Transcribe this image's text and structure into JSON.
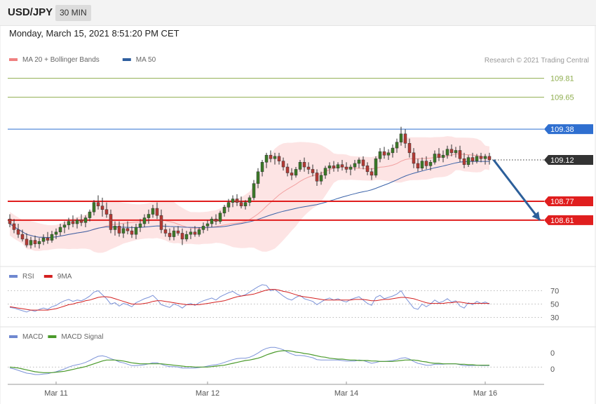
{
  "header": {
    "pair": "USD/JPY",
    "timeframe": "30 MIN"
  },
  "datetime": "Monday, March 15, 2021 8:51:20 PM CET",
  "copyright": "Research © 2021 Trading Central",
  "legend_main": [
    {
      "label": "MA 20 + Bollinger Bands",
      "color": "#f08080"
    },
    {
      "label": "MA 50",
      "color": "#2f5f9f"
    }
  ],
  "legend_rsi": [
    {
      "label": "RSI",
      "color": "#6f88d0"
    },
    {
      "label": "9MA",
      "color": "#d42020"
    }
  ],
  "legend_macd": [
    {
      "label": "MACD",
      "color": "#6f88d0"
    },
    {
      "label": "MACD Signal",
      "color": "#4a9a2a"
    }
  ],
  "chart_data": {
    "type": "candlestick",
    "price_range": [
      108.23,
      109.95
    ],
    "levels": [
      {
        "label": "109.81",
        "value": 109.81,
        "kind": "target",
        "color": "#8fae4f"
      },
      {
        "label": "109.65",
        "value": 109.65,
        "kind": "target",
        "color": "#8fae4f"
      },
      {
        "label": "109.38",
        "value": 109.38,
        "kind": "pivot",
        "color": "#2f6fd0"
      },
      {
        "label": "109.12",
        "value": 109.12,
        "kind": "last",
        "color": "#333333"
      },
      {
        "label": "108.77",
        "value": 108.77,
        "kind": "support",
        "color": "#e01e1e"
      },
      {
        "label": "108.61",
        "value": 108.61,
        "kind": "support",
        "color": "#e01e1e"
      }
    ],
    "x_ticks": [
      {
        "label": "Mar 11",
        "index": 11
      },
      {
        "label": "Mar 12",
        "index": 47
      },
      {
        "label": "Mar 14",
        "index": 80
      },
      {
        "label": "Mar 16",
        "index": 113
      }
    ],
    "arrow": {
      "from_index": 115,
      "from_value": 109.12,
      "to_index": 126,
      "to_value": 108.61
    },
    "candles": [
      [
        108.62,
        108.66,
        108.55,
        108.58
      ],
      [
        108.58,
        108.62,
        108.5,
        108.53
      ],
      [
        108.53,
        108.58,
        108.46,
        108.49
      ],
      [
        108.49,
        108.53,
        108.43,
        108.45
      ],
      [
        108.45,
        108.5,
        108.38,
        108.4
      ],
      [
        108.4,
        108.47,
        108.37,
        108.44
      ],
      [
        108.44,
        108.48,
        108.38,
        108.41
      ],
      [
        108.41,
        108.46,
        108.37,
        108.43
      ],
      [
        108.43,
        108.49,
        108.4,
        108.46
      ],
      [
        108.46,
        108.51,
        108.41,
        108.44
      ],
      [
        108.44,
        108.52,
        108.42,
        108.49
      ],
      [
        108.49,
        108.54,
        108.45,
        108.51
      ],
      [
        108.51,
        108.58,
        108.48,
        108.55
      ],
      [
        108.55,
        108.6,
        108.5,
        108.57
      ],
      [
        108.57,
        108.63,
        108.53,
        108.6
      ],
      [
        108.6,
        108.65,
        108.55,
        108.58
      ],
      [
        108.58,
        108.63,
        108.54,
        108.61
      ],
      [
        108.61,
        108.66,
        108.56,
        108.59
      ],
      [
        108.59,
        108.65,
        108.55,
        108.63
      ],
      [
        108.63,
        108.7,
        108.6,
        108.68
      ],
      [
        108.68,
        108.78,
        108.65,
        108.76
      ],
      [
        108.76,
        108.82,
        108.7,
        108.73
      ],
      [
        108.73,
        108.8,
        108.64,
        108.7
      ],
      [
        108.7,
        108.76,
        108.63,
        108.66
      ],
      [
        108.66,
        108.7,
        108.5,
        108.53
      ],
      [
        108.53,
        108.6,
        108.48,
        108.56
      ],
      [
        108.56,
        108.6,
        108.47,
        108.5
      ],
      [
        108.5,
        108.58,
        108.46,
        108.54
      ],
      [
        108.54,
        108.6,
        108.49,
        108.52
      ],
      [
        108.52,
        108.56,
        108.46,
        108.49
      ],
      [
        108.49,
        108.58,
        108.45,
        108.55
      ],
      [
        108.55,
        108.62,
        108.51,
        108.58
      ],
      [
        108.58,
        108.66,
        108.55,
        108.63
      ],
      [
        108.63,
        108.7,
        108.58,
        108.66
      ],
      [
        108.66,
        108.74,
        108.63,
        108.71
      ],
      [
        108.71,
        108.76,
        108.62,
        108.65
      ],
      [
        108.65,
        108.7,
        108.5,
        108.53
      ],
      [
        108.53,
        108.58,
        108.47,
        108.5
      ],
      [
        108.5,
        108.54,
        108.44,
        108.47
      ],
      [
        108.47,
        108.55,
        108.44,
        108.52
      ],
      [
        108.52,
        108.56,
        108.48,
        108.5
      ],
      [
        108.5,
        108.54,
        108.4,
        108.45
      ],
      [
        108.45,
        108.52,
        108.43,
        108.49
      ],
      [
        108.49,
        108.54,
        108.45,
        108.51
      ],
      [
        108.51,
        108.56,
        108.47,
        108.49
      ],
      [
        108.49,
        108.55,
        108.47,
        108.53
      ],
      [
        108.53,
        108.59,
        108.5,
        108.56
      ],
      [
        108.56,
        108.61,
        108.52,
        108.58
      ],
      [
        108.58,
        108.64,
        108.55,
        108.62
      ],
      [
        108.62,
        108.66,
        108.57,
        108.6
      ],
      [
        108.6,
        108.69,
        108.58,
        108.67
      ],
      [
        108.67,
        108.74,
        108.64,
        108.72
      ],
      [
        108.72,
        108.79,
        108.68,
        108.76
      ],
      [
        108.76,
        108.82,
        108.72,
        108.79
      ],
      [
        108.79,
        108.83,
        108.73,
        108.76
      ],
      [
        108.76,
        108.81,
        108.71,
        108.73
      ],
      [
        108.73,
        108.78,
        108.7,
        108.76
      ],
      [
        108.76,
        108.82,
        108.73,
        108.8
      ],
      [
        108.8,
        108.95,
        108.78,
        108.92
      ],
      [
        108.92,
        109.05,
        108.88,
        109.02
      ],
      [
        109.02,
        109.12,
        108.98,
        109.1
      ],
      [
        109.1,
        109.18,
        109.05,
        109.16
      ],
      [
        109.16,
        109.2,
        109.1,
        109.13
      ],
      [
        109.13,
        109.18,
        109.08,
        109.15
      ],
      [
        109.15,
        109.18,
        109.08,
        109.11
      ],
      [
        109.11,
        109.14,
        109.03,
        109.06
      ],
      [
        109.06,
        109.09,
        108.98,
        109.01
      ],
      [
        109.01,
        109.05,
        108.95,
        108.99
      ],
      [
        108.99,
        109.06,
        108.97,
        109.04
      ],
      [
        109.04,
        109.12,
        109.02,
        109.1
      ],
      [
        109.1,
        109.14,
        109.02,
        109.06
      ],
      [
        109.06,
        109.1,
        109.0,
        109.04
      ],
      [
        109.04,
        109.08,
        108.98,
        109.01
      ],
      [
        109.01,
        109.04,
        108.9,
        108.94
      ],
      [
        108.94,
        109.02,
        108.91,
        108.99
      ],
      [
        108.99,
        109.07,
        108.96,
        109.05
      ],
      [
        109.05,
        109.1,
        109.0,
        109.07
      ],
      [
        109.07,
        109.11,
        109.02,
        109.05
      ],
      [
        109.05,
        109.1,
        109.02,
        109.08
      ],
      [
        109.08,
        109.12,
        109.03,
        109.06
      ],
      [
        109.06,
        109.1,
        109.01,
        109.04
      ],
      [
        109.04,
        109.08,
        108.99,
        109.06
      ],
      [
        109.06,
        109.12,
        109.03,
        109.09
      ],
      [
        109.09,
        109.14,
        109.05,
        109.12
      ],
      [
        109.12,
        109.15,
        109.04,
        109.07
      ],
      [
        109.07,
        109.1,
        108.99,
        109.02
      ],
      [
        109.02,
        109.05,
        108.95,
        108.99
      ],
      [
        108.99,
        109.15,
        108.97,
        109.13
      ],
      [
        109.13,
        109.22,
        109.1,
        109.19
      ],
      [
        109.19,
        109.23,
        109.13,
        109.16
      ],
      [
        109.16,
        109.21,
        109.12,
        109.18
      ],
      [
        109.18,
        109.25,
        109.14,
        109.22
      ],
      [
        109.22,
        109.3,
        109.18,
        109.27
      ],
      [
        109.27,
        109.4,
        109.24,
        109.34
      ],
      [
        109.34,
        109.38,
        109.22,
        109.26
      ],
      [
        109.26,
        109.3,
        109.14,
        109.18
      ],
      [
        109.18,
        109.22,
        109.05,
        109.09
      ],
      [
        109.09,
        109.13,
        109.02,
        109.05
      ],
      [
        109.05,
        109.14,
        109.03,
        109.11
      ],
      [
        109.11,
        109.15,
        109.04,
        109.07
      ],
      [
        109.07,
        109.12,
        109.03,
        109.1
      ],
      [
        109.1,
        109.2,
        109.08,
        109.17
      ],
      [
        109.17,
        109.22,
        109.11,
        109.14
      ],
      [
        109.14,
        109.2,
        109.1,
        109.16
      ],
      [
        109.16,
        109.24,
        109.13,
        109.21
      ],
      [
        109.21,
        109.25,
        109.15,
        109.18
      ],
      [
        109.18,
        109.23,
        109.14,
        109.2
      ],
      [
        109.2,
        109.24,
        109.1,
        109.13
      ],
      [
        109.13,
        109.18,
        109.05,
        109.08
      ],
      [
        109.08,
        109.16,
        109.06,
        109.14
      ],
      [
        109.14,
        109.18,
        109.08,
        109.11
      ],
      [
        109.11,
        109.17,
        109.09,
        109.15
      ],
      [
        109.15,
        109.18,
        109.1,
        109.13
      ],
      [
        109.13,
        109.17,
        109.08,
        109.15
      ],
      [
        109.15,
        109.18,
        109.08,
        109.12
      ]
    ],
    "rsi": {
      "ticks": [
        70,
        50,
        30
      ],
      "range": [
        20,
        80
      ],
      "rsi": [
        45,
        44,
        42,
        40,
        38,
        41,
        39,
        42,
        44,
        42,
        46,
        48,
        52,
        55,
        57,
        54,
        56,
        55,
        58,
        62,
        68,
        70,
        64,
        58,
        50,
        52,
        47,
        51,
        49,
        46,
        52,
        55,
        58,
        60,
        63,
        57,
        49,
        47,
        45,
        50,
        48,
        44,
        49,
        51,
        48,
        52,
        55,
        57,
        59,
        56,
        61,
        64,
        67,
        69,
        65,
        62,
        64,
        68,
        72,
        76,
        79,
        78,
        70,
        72,
        67,
        62,
        58,
        56,
        60,
        63,
        58,
        56,
        54,
        49,
        53,
        57,
        59,
        56,
        58,
        55,
        53,
        57,
        59,
        61,
        56,
        51,
        48,
        60,
        63,
        58,
        60,
        62,
        65,
        70,
        60,
        52,
        44,
        42,
        50,
        46,
        50,
        56,
        52,
        54,
        58,
        53,
        55,
        47,
        44,
        52,
        49,
        54,
        51,
        53,
        50
      ],
      "ma9": [
        46,
        45,
        44,
        43,
        42,
        41,
        41,
        41,
        41,
        41,
        42,
        43,
        45,
        47,
        49,
        50,
        52,
        53,
        55,
        56,
        58,
        60,
        61,
        61,
        60,
        58,
        56,
        54,
        52,
        50,
        50,
        50,
        51,
        52,
        54,
        55,
        55,
        54,
        53,
        52,
        51,
        50,
        49,
        49,
        49,
        49,
        50,
        51,
        52,
        53,
        54,
        55,
        57,
        59,
        61,
        62,
        63,
        64,
        65,
        67,
        69,
        71,
        72,
        72,
        71,
        69,
        68,
        66,
        64,
        62,
        61,
        60,
        59,
        58,
        57,
        56,
        56,
        56,
        56,
        56,
        56,
        56,
        57,
        57,
        57,
        56,
        55,
        55,
        56,
        57,
        57,
        58,
        59,
        60,
        60,
        59,
        58,
        56,
        54,
        52,
        51,
        51,
        51,
        51,
        52,
        52,
        53,
        53,
        52,
        51,
        51,
        51,
        51,
        51,
        51
      ]
    },
    "macd": {
      "ticks": [
        "0",
        "0"
      ],
      "range": [
        -0.25,
        0.5
      ],
      "macd": [
        -0.02,
        -0.04,
        -0.07,
        -0.1,
        -0.13,
        -0.14,
        -0.16,
        -0.16,
        -0.15,
        -0.14,
        -0.12,
        -0.1,
        -0.07,
        -0.04,
        0.0,
        0.03,
        0.05,
        0.07,
        0.1,
        0.14,
        0.19,
        0.23,
        0.24,
        0.22,
        0.18,
        0.15,
        0.11,
        0.09,
        0.06,
        0.03,
        0.03,
        0.04,
        0.05,
        0.07,
        0.09,
        0.09,
        0.06,
        0.03,
        0.01,
        0.01,
        0.0,
        -0.02,
        -0.02,
        -0.02,
        -0.02,
        -0.01,
        0.0,
        0.02,
        0.04,
        0.05,
        0.07,
        0.1,
        0.13,
        0.16,
        0.18,
        0.19,
        0.19,
        0.21,
        0.25,
        0.3,
        0.36,
        0.4,
        0.42,
        0.42,
        0.4,
        0.37,
        0.32,
        0.28,
        0.25,
        0.25,
        0.24,
        0.22,
        0.2,
        0.16,
        0.15,
        0.15,
        0.15,
        0.15,
        0.15,
        0.14,
        0.13,
        0.13,
        0.13,
        0.15,
        0.14,
        0.11,
        0.08,
        0.1,
        0.12,
        0.12,
        0.13,
        0.14,
        0.16,
        0.19,
        0.2,
        0.17,
        0.12,
        0.08,
        0.06,
        0.04,
        0.04,
        0.06,
        0.06,
        0.06,
        0.07,
        0.07,
        0.07,
        0.05,
        0.03,
        0.03,
        0.03,
        0.04,
        0.03,
        0.03,
        0.03
      ],
      "signal": [
        0.0,
        -0.01,
        -0.02,
        -0.04,
        -0.06,
        -0.08,
        -0.1,
        -0.11,
        -0.12,
        -0.12,
        -0.12,
        -0.11,
        -0.1,
        -0.09,
        -0.07,
        -0.05,
        -0.03,
        -0.01,
        0.01,
        0.04,
        0.07,
        0.1,
        0.13,
        0.15,
        0.15,
        0.15,
        0.14,
        0.13,
        0.11,
        0.09,
        0.08,
        0.07,
        0.07,
        0.07,
        0.07,
        0.07,
        0.07,
        0.06,
        0.05,
        0.04,
        0.03,
        0.02,
        0.01,
        0.01,
        0.0,
        0.0,
        0.0,
        0.0,
        0.01,
        0.02,
        0.03,
        0.04,
        0.06,
        0.08,
        0.1,
        0.12,
        0.14,
        0.15,
        0.17,
        0.19,
        0.22,
        0.26,
        0.29,
        0.32,
        0.34,
        0.35,
        0.35,
        0.34,
        0.32,
        0.31,
        0.29,
        0.28,
        0.26,
        0.24,
        0.22,
        0.21,
        0.19,
        0.18,
        0.17,
        0.17,
        0.16,
        0.15,
        0.15,
        0.14,
        0.14,
        0.14,
        0.13,
        0.13,
        0.12,
        0.12,
        0.12,
        0.12,
        0.13,
        0.14,
        0.15,
        0.15,
        0.15,
        0.14,
        0.12,
        0.11,
        0.09,
        0.08,
        0.08,
        0.07,
        0.07,
        0.07,
        0.07,
        0.06,
        0.06,
        0.05,
        0.05,
        0.04,
        0.04,
        0.04,
        0.04
      ]
    }
  }
}
